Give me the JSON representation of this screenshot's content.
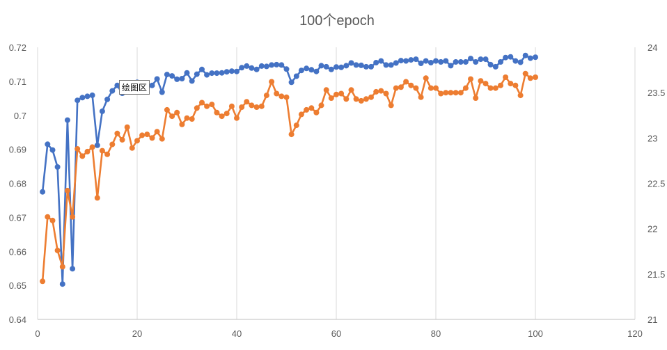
{
  "chart_data": {
    "type": "line",
    "title": "100个epoch",
    "xlim": [
      0,
      120
    ],
    "x_ticks": [
      "0",
      "20",
      "40",
      "60",
      "80",
      "100",
      "120"
    ],
    "y_left_lim": [
      0.64,
      0.72
    ],
    "y_left_ticks": [
      "0.64",
      "0.65",
      "0.66",
      "0.67",
      "0.68",
      "0.69",
      "0.7",
      "0.71",
      "0.72"
    ],
    "y_right_lim": [
      21,
      24
    ],
    "y_right_ticks": [
      "21",
      "21.5",
      "22",
      "22.5",
      "23",
      "23.5",
      "24"
    ],
    "grid": "vertical",
    "legend": "none",
    "x": [
      1,
      2,
      3,
      4,
      5,
      6,
      7,
      8,
      9,
      10,
      11,
      12,
      13,
      14,
      15,
      16,
      17,
      18,
      19,
      20,
      21,
      22,
      23,
      24,
      25,
      26,
      27,
      28,
      29,
      30,
      31,
      32,
      33,
      34,
      35,
      36,
      37,
      38,
      39,
      40,
      41,
      42,
      43,
      44,
      45,
      46,
      47,
      48,
      49,
      50,
      51,
      52,
      53,
      54,
      55,
      56,
      57,
      58,
      59,
      60,
      61,
      62,
      63,
      64,
      65,
      66,
      67,
      68,
      69,
      70,
      71,
      72,
      73,
      74,
      75,
      76,
      77,
      78,
      79,
      80,
      81,
      82,
      83,
      84,
      85,
      86,
      87,
      88,
      89,
      90,
      91,
      92,
      93,
      94,
      95,
      96,
      97,
      98,
      99,
      100
    ],
    "series": [
      {
        "axis": "left",
        "color": "#4472c4",
        "values": [
          0.6775,
          0.6915,
          0.6898,
          0.6848,
          0.6504,
          0.6986,
          0.6549,
          0.7044,
          0.7052,
          0.7056,
          0.7059,
          0.6912,
          0.7012,
          0.7047,
          0.7072,
          0.7088,
          0.7065,
          0.7075,
          0.7091,
          0.7097,
          0.7092,
          0.7081,
          0.7088,
          0.7107,
          0.7068,
          0.712,
          0.7116,
          0.7106,
          0.7108,
          0.7125,
          0.7101,
          0.7121,
          0.7135,
          0.7119,
          0.7124,
          0.7124,
          0.7125,
          0.7128,
          0.713,
          0.7129,
          0.714,
          0.7145,
          0.7139,
          0.7135,
          0.7145,
          0.7144,
          0.7148,
          0.7149,
          0.7148,
          0.7136,
          0.7097,
          0.7115,
          0.7132,
          0.7138,
          0.7134,
          0.7129,
          0.7146,
          0.7143,
          0.7135,
          0.7142,
          0.7141,
          0.7146,
          0.7154,
          0.7148,
          0.7147,
          0.7143,
          0.7143,
          0.7155,
          0.716,
          0.7148,
          0.7148,
          0.7154,
          0.7161,
          0.716,
          0.7163,
          0.7165,
          0.7153,
          0.716,
          0.7155,
          0.716,
          0.7157,
          0.716,
          0.7146,
          0.7157,
          0.7157,
          0.7157,
          0.7167,
          0.7157,
          0.7165,
          0.7165,
          0.7149,
          0.7143,
          0.7157,
          0.717,
          0.7172,
          0.716,
          0.7156,
          0.7176,
          0.7168,
          0.7171
        ]
      },
      {
        "axis": "right",
        "color": "#ed7d31",
        "values": [
          21.42,
          22.13,
          22.09,
          21.76,
          21.58,
          22.42,
          22.13,
          22.88,
          22.8,
          22.85,
          22.9,
          22.34,
          22.86,
          22.82,
          22.93,
          23.05,
          22.98,
          23.12,
          22.89,
          22.97,
          23.03,
          23.04,
          23.0,
          23.07,
          22.99,
          23.31,
          23.24,
          23.28,
          23.15,
          23.22,
          23.21,
          23.33,
          23.39,
          23.35,
          23.37,
          23.28,
          23.24,
          23.27,
          23.35,
          23.22,
          23.34,
          23.4,
          23.36,
          23.34,
          23.35,
          23.47,
          23.62,
          23.49,
          23.46,
          23.45,
          23.04,
          23.14,
          23.26,
          23.31,
          23.33,
          23.28,
          23.36,
          23.53,
          23.44,
          23.48,
          23.49,
          23.43,
          23.53,
          23.43,
          23.41,
          23.43,
          23.45,
          23.51,
          23.52,
          23.49,
          23.36,
          23.55,
          23.56,
          23.62,
          23.58,
          23.55,
          23.45,
          23.66,
          23.55,
          23.55,
          23.49,
          23.5,
          23.5,
          23.5,
          23.5,
          23.55,
          23.65,
          23.44,
          23.63,
          23.6,
          23.55,
          23.55,
          23.58,
          23.67,
          23.6,
          23.58,
          23.47,
          23.71,
          23.66,
          23.67
        ]
      }
    ]
  },
  "tooltip": {
    "text": "绘图区"
  }
}
